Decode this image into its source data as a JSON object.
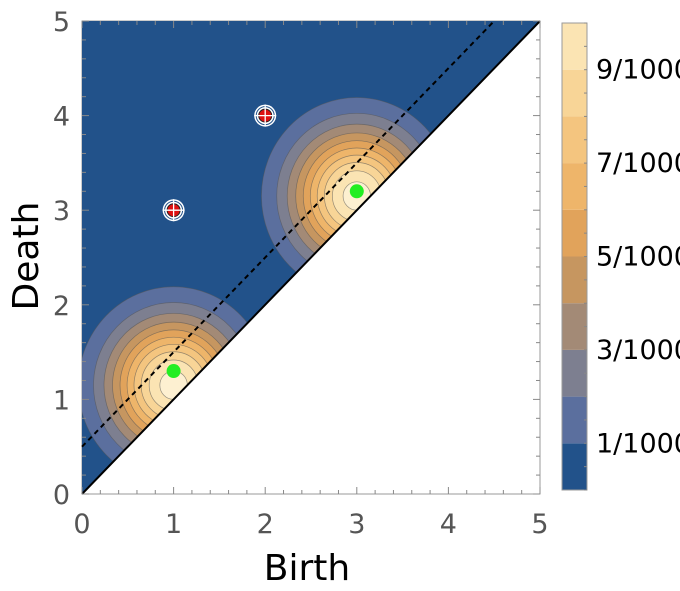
{
  "chart_data": {
    "type": "heatmap",
    "xlabel": "Birth",
    "ylabel": "Death",
    "xlim": [
      0,
      5
    ],
    "ylim": [
      0,
      5
    ],
    "x_ticks": [
      "0",
      "1",
      "2",
      "3",
      "4",
      "5"
    ],
    "y_ticks": [
      "0",
      "1",
      "2",
      "3",
      "4",
      "5"
    ],
    "contour_levels": [
      0,
      0.001,
      0.002,
      0.003,
      0.004,
      0.005,
      0.006,
      0.007,
      0.008,
      0.009,
      0.01
    ],
    "colorbar_labels": [
      "1/1000",
      "3/1000",
      "5/1000",
      "7/1000",
      "9/1000"
    ],
    "colorbar_label_values": [
      0.001,
      0.003,
      0.005,
      0.007,
      0.009
    ],
    "band_colors": [
      "#22528a",
      "#5b6f9e",
      "#7d7f90",
      "#a38a76",
      "#c69660",
      "#e1a35b",
      "#eeb56a",
      "#f4c57f",
      "#f8d597",
      "#fbe4b3",
      "#fdf0d1"
    ],
    "hotspots": [
      {
        "center": [
          1.0,
          1.15
        ],
        "peak": 0.0105,
        "width": 0.48
      },
      {
        "center": [
          3.0,
          3.15
        ],
        "peak": 0.0105,
        "width": 0.48
      }
    ],
    "points_green": [
      {
        "x": 1.0,
        "y": 1.3
      },
      {
        "x": 3.0,
        "y": 3.2
      }
    ],
    "points_red_target": [
      {
        "x": 1.0,
        "y": 3.0
      },
      {
        "x": 2.0,
        "y": 4.0
      }
    ],
    "diagonal_line": {
      "x": [
        0,
        5
      ],
      "y": [
        0,
        5
      ]
    },
    "dashed_line": {
      "x": [
        0,
        4.5
      ],
      "y": [
        0.5,
        5
      ]
    },
    "colors": {
      "background": "#22528a",
      "green_point": "#22ee22",
      "red_point": "#dd1111"
    }
  }
}
